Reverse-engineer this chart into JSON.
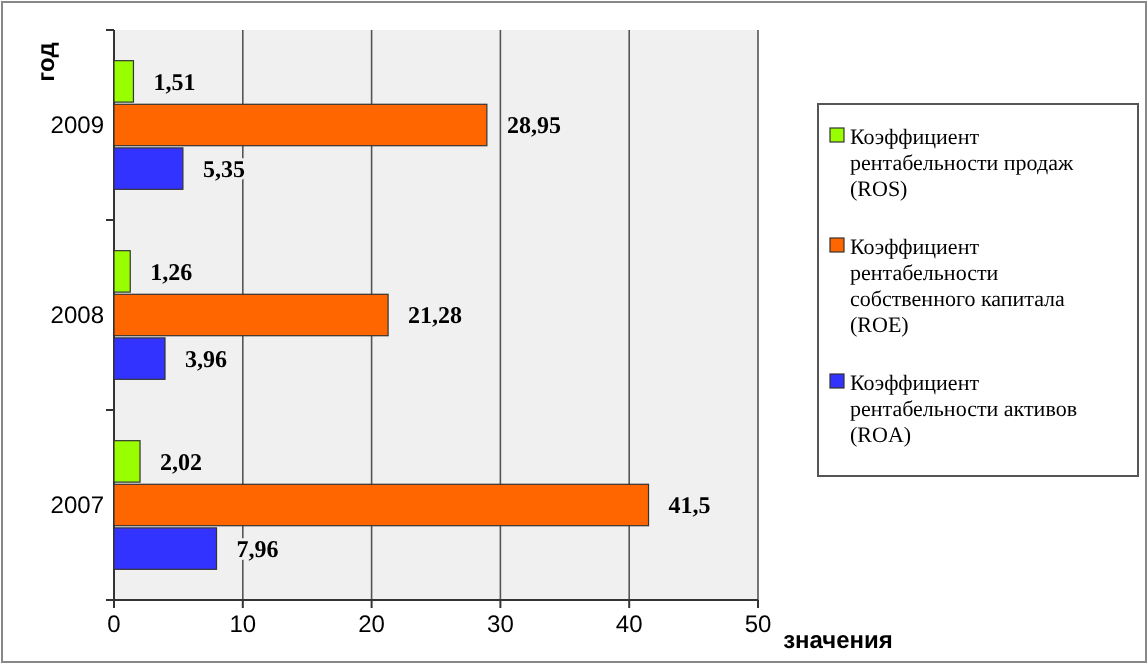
{
  "chart_data": {
    "type": "bar",
    "orientation": "horizontal",
    "categories": [
      "2009",
      "2008",
      "2007"
    ],
    "series": [
      {
        "name": "Коэффициент рентабельности продаж (ROS)",
        "color": "#99ff00",
        "values": [
          1.51,
          1.26,
          2.02
        ],
        "value_labels": [
          "1,51",
          "1,26",
          "2,02"
        ]
      },
      {
        "name": "Коэффициент рентабельности собственного капитала (ROE)",
        "color": "#ff6600",
        "values": [
          28.95,
          21.28,
          41.5
        ],
        "value_labels": [
          "28,95",
          "21,28",
          "41,5"
        ]
      },
      {
        "name": "Коэффициент рентабельности активов (ROA)",
        "color": "#3333ff",
        "values": [
          5.35,
          3.96,
          7.96
        ],
        "value_labels": [
          "5,35",
          "3,96",
          "7,96"
        ]
      }
    ],
    "xlim": [
      0,
      50
    ],
    "xticks": [
      0,
      10,
      20,
      30,
      40,
      50
    ],
    "xlabel": "значения",
    "ylabel": "год",
    "grid": "x",
    "legend": "right"
  }
}
